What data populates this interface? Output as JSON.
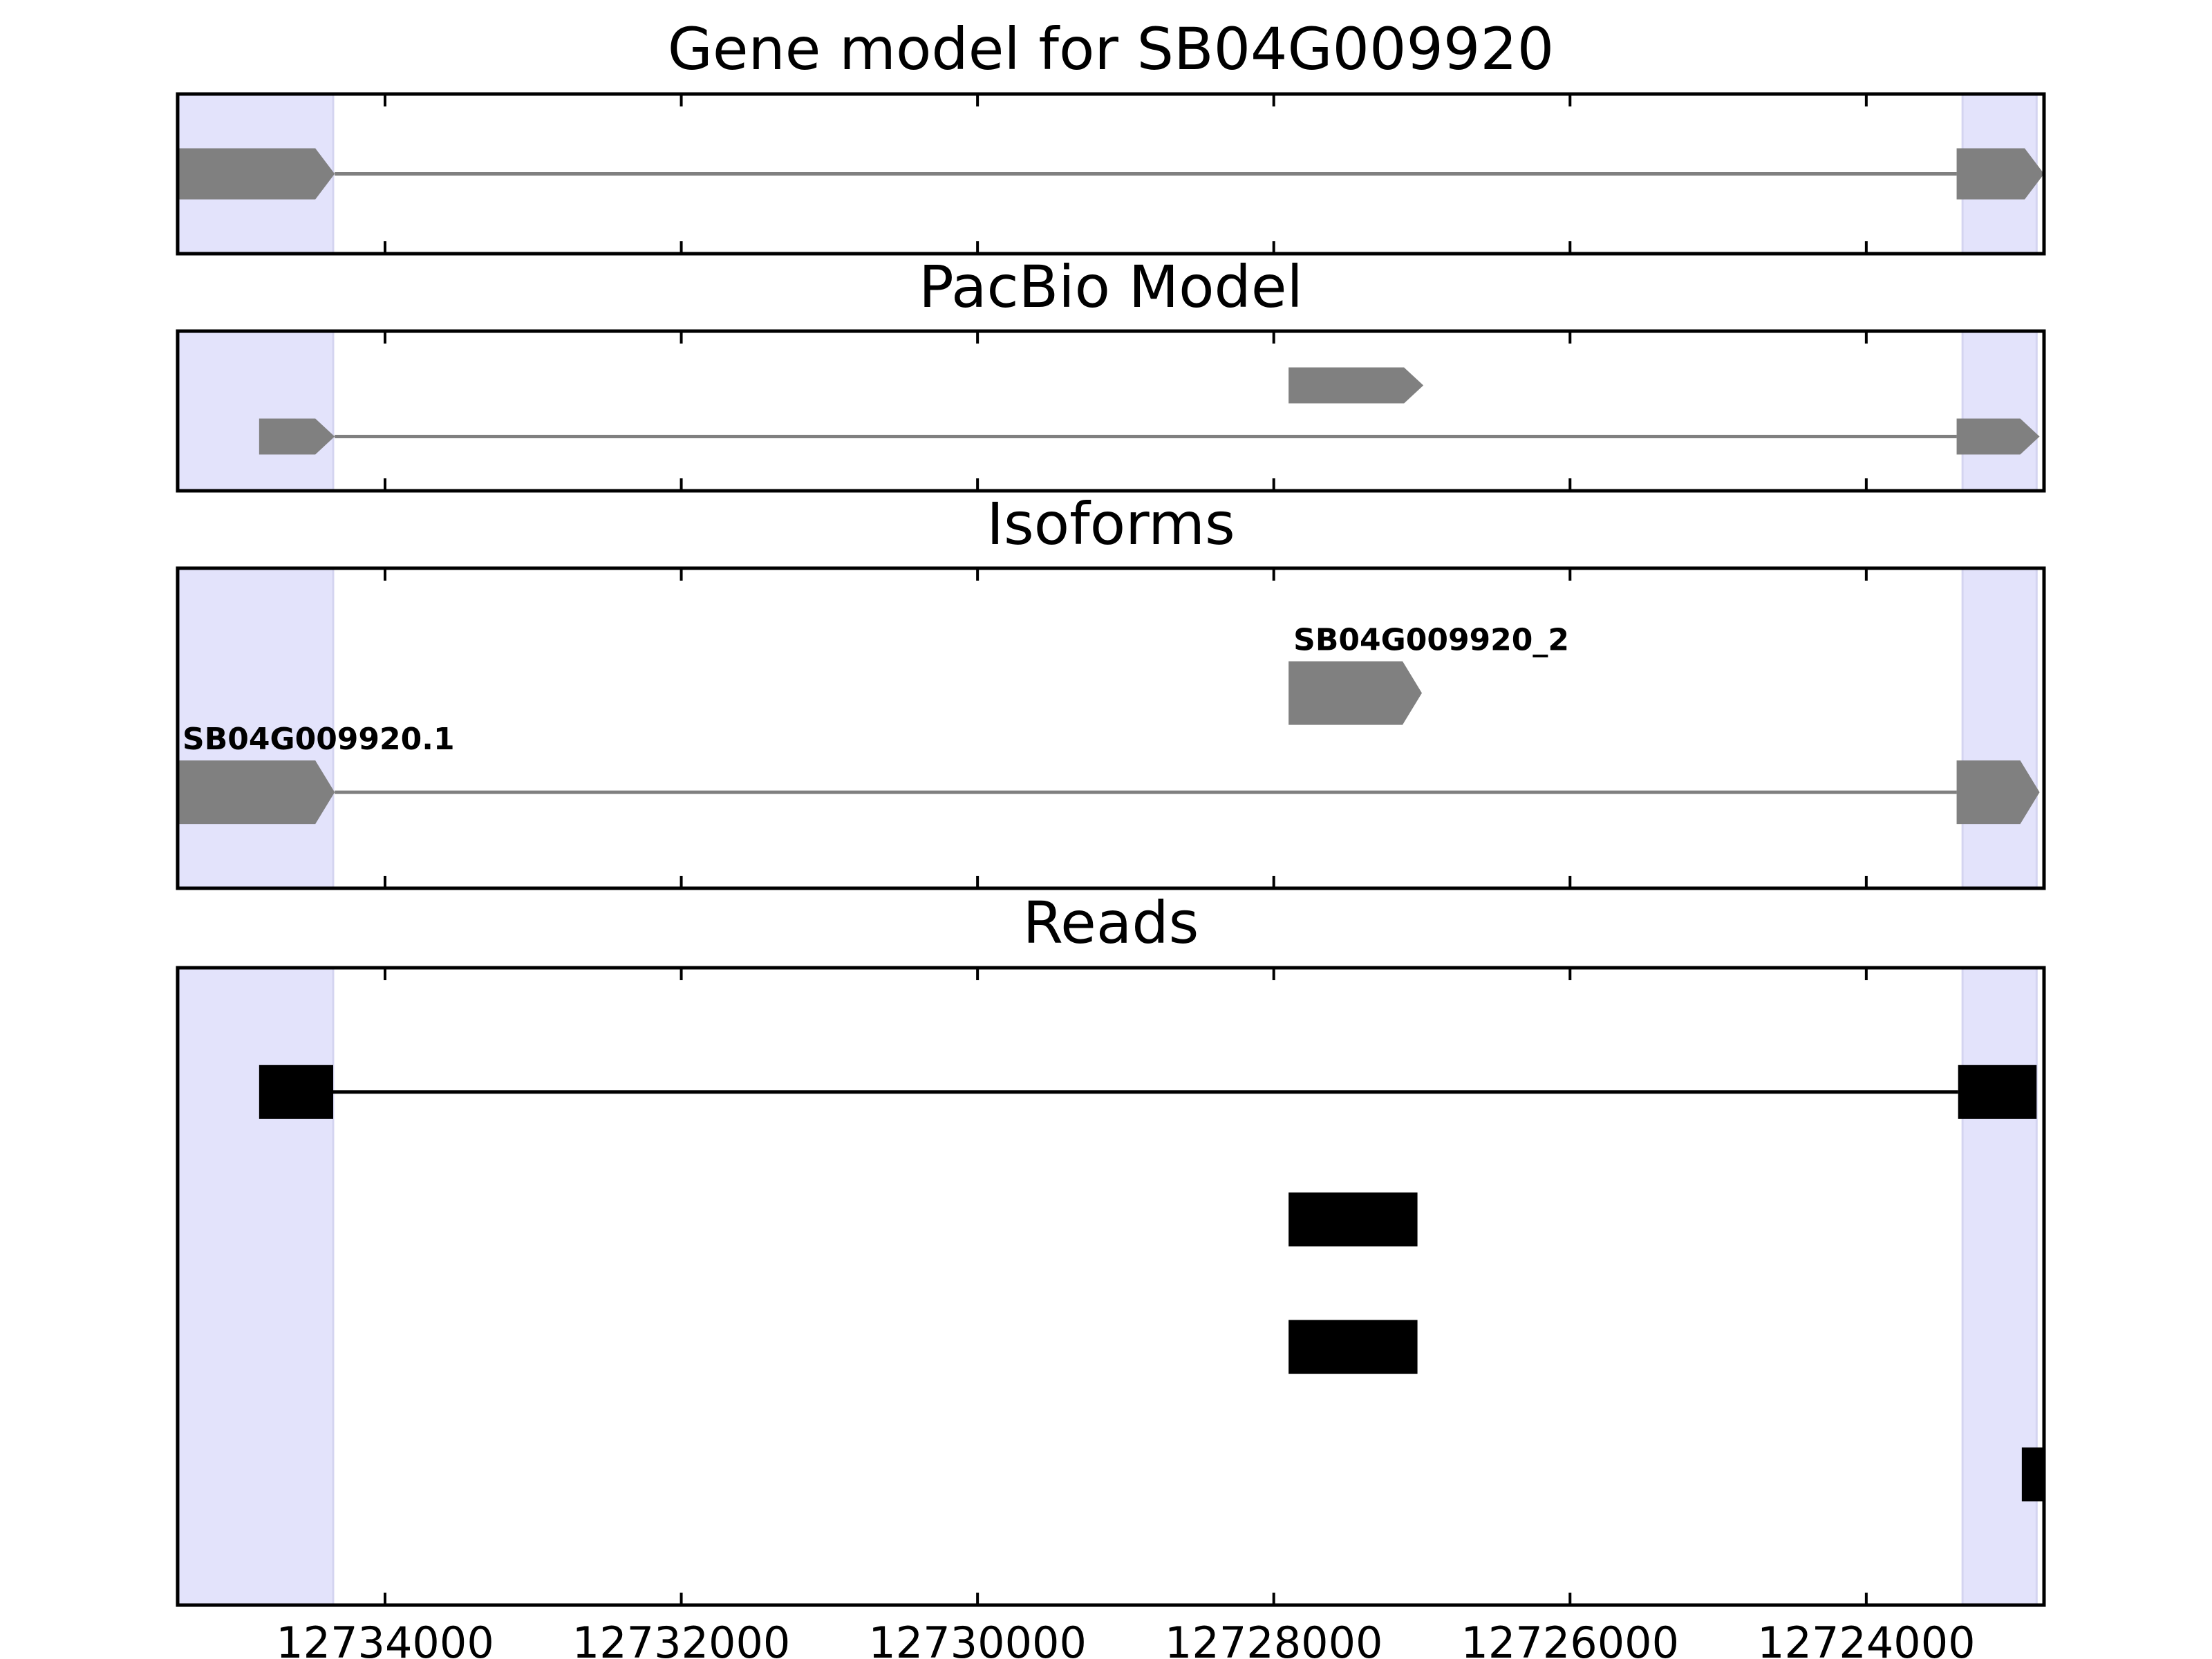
{
  "chart_data": {
    "type": "gene-track",
    "x_axis": {
      "range": [
        12735400,
        12722800
      ],
      "reversed": true,
      "ticks": [
        12734000,
        12732000,
        12730000,
        12728000,
        12726000,
        12724000
      ],
      "tick_labels": [
        "12734000",
        "12732000",
        "12730000",
        "12728000",
        "12726000",
        "12724000"
      ]
    },
    "highlight_regions": [
      {
        "start": 12735400,
        "end": 12734350
      },
      {
        "start": 12723350,
        "end": 12722850
      }
    ],
    "colors": {
      "highlight": "#e3e3fb",
      "feature": "#808080",
      "read": "#000000",
      "frame": "#000000"
    },
    "panels": [
      {
        "title": "Gene model for SB04G009920",
        "y_range": [
          0,
          1
        ],
        "features": [
          {
            "kind": "transcript",
            "y": 0.5,
            "exons": [
              [
                12735400,
                12734340
              ],
              [
                12723390,
                12722800
              ]
            ],
            "arrow": true
          }
        ]
      },
      {
        "title": "PacBio Model",
        "y_range": [
          0,
          1
        ],
        "features": [
          {
            "kind": "transcript",
            "y": 0.34,
            "exons": [
              [
                12734850,
                12734340
              ],
              [
                12723390,
                12722830
              ]
            ],
            "arrow": true
          },
          {
            "kind": "transcript",
            "y": 0.66,
            "exons": [
              [
                12727900,
                12726990
              ]
            ],
            "arrow": true
          }
        ]
      },
      {
        "title": "Isoforms",
        "y_range": [
          0,
          1
        ],
        "features": [
          {
            "kind": "transcript",
            "y": 0.3,
            "label": "SB04G009920.1",
            "exons": [
              [
                12735400,
                12734340
              ],
              [
                12723390,
                12722830
              ]
            ],
            "arrow": true
          },
          {
            "kind": "transcript",
            "y": 0.61,
            "label": "SB04G009920_2",
            "exons": [
              [
                12727900,
                12727000
              ]
            ],
            "arrow": true
          }
        ]
      },
      {
        "title": "Reads",
        "y_range": [
          0,
          1
        ],
        "features": [
          {
            "kind": "read",
            "y": 0.805,
            "exons": [
              [
                12734850,
                12734350
              ],
              [
                12723380,
                12722850
              ]
            ]
          },
          {
            "kind": "read",
            "y": 0.605,
            "exons": [
              [
                12727900,
                12727030
              ]
            ]
          },
          {
            "kind": "read",
            "y": 0.405,
            "exons": [
              [
                12727900,
                12727030
              ]
            ]
          },
          {
            "kind": "read",
            "y": 0.205,
            "exons": [
              [
                12722950,
                12722800
              ]
            ]
          }
        ]
      }
    ]
  }
}
